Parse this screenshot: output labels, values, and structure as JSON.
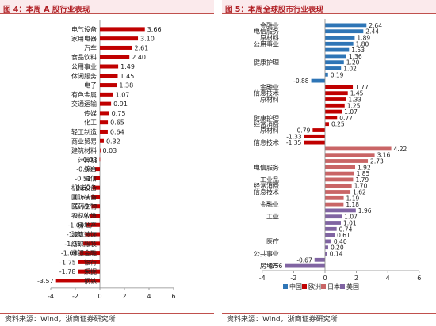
{
  "figures": {
    "left_title": "图 4：本周 A 股行业表现",
    "right_title": "图 5：本周全球股市行业表现"
  },
  "footer": {
    "left_source": "资料来源：Wind，浙商证券研究所",
    "right_source": "资料来源：Wind，浙商证券研究所"
  },
  "colors": {
    "bar_red": "#c00000",
    "china_blue": "#2e75b6",
    "europe_red": "#c00000",
    "japan_rose": "#c96566",
    "usa_purple": "#8064a2",
    "title_red": "#b01f24"
  },
  "chart_data": [
    {
      "type": "bar",
      "orientation": "horizontal",
      "title": "图 4：本周 A 股行业表现",
      "xlim": [
        -4,
        6
      ],
      "xticks": [
        -4,
        -2,
        0,
        2,
        4,
        6
      ],
      "grid": false,
      "categories": [
        "电气设备",
        "家用电器",
        "汽车",
        "食品饮料",
        "公用事业",
        "休闲服务",
        "电子",
        "有色金属",
        "交通运输",
        "传媒",
        "化工",
        "轻工制造",
        "商业贸易",
        "建筑材料",
        "计算机",
        "综合",
        "通信",
        "机械设备",
        "国防装备",
        "医药生物",
        "农林牧渔",
        "房地产",
        "建筑装饰",
        "纺织服装",
        "非银金融",
        "银行",
        "采掘",
        "钢铁"
      ],
      "values": [
        3.66,
        3.1,
        2.61,
        2.4,
        1.49,
        1.45,
        1.38,
        1.07,
        0.91,
        0.75,
        0.65,
        0.64,
        0.32,
        0.03,
        -0.03,
        -0.39,
        -0.51,
        -0.6,
        -0.69,
        -0.69,
        -0.79,
        -1.09,
        -1.2,
        -1.35,
        -1.64,
        -1.75,
        -1.78,
        -3.57
      ],
      "value_labels": [
        "3.66",
        "3.10",
        "2.61",
        "2.40",
        "1.49",
        "1.45",
        "1.38",
        "1.07",
        "0.91",
        "0.75",
        "0.65",
        "0.64",
        "0.32",
        "0.03",
        "-0.03",
        "-0.39",
        "-0.51",
        "-0.60",
        "-0.69",
        "-0.69",
        "-0.79",
        "-1.09",
        "-1.20",
        "-1.35",
        "-1.64",
        "-1.75",
        "-1.78",
        "-3.57"
      ]
    },
    {
      "type": "bar",
      "orientation": "horizontal",
      "title": "图 5：本周全球股市行业表现",
      "xlim": [
        -4,
        6
      ],
      "xticks": [
        -4,
        -2,
        0,
        2,
        4,
        6
      ],
      "grid": false,
      "legend_position": "bottom",
      "legend": [
        "中国",
        "欧洲",
        "日本",
        "美国"
      ],
      "series": [
        {
          "name": "中国",
          "values": [
            2.64,
            2.44,
            1.89,
            1.8,
            1.53,
            1.36,
            1.2,
            1.02,
            0.19,
            -0.88
          ],
          "value_labels": [
            "2.64",
            "2.44",
            "1.89",
            "1.80",
            "1.53",
            "1.36",
            "1.20",
            "1.02",
            "0.19",
            "-0.88"
          ]
        },
        {
          "name": "欧洲",
          "values": [
            1.77,
            1.45,
            1.33,
            1.25,
            1.07,
            0.77,
            0.25,
            -0.79,
            -1.33,
            -1.35
          ],
          "value_labels": [
            "1.77",
            "1.45",
            "1.33",
            "1.25",
            "1.07",
            "0.77",
            "0.25",
            "-0.79",
            "-1.33",
            "-1.35"
          ]
        },
        {
          "name": "日本",
          "values": [
            4.22,
            3.16,
            2.73,
            1.92,
            1.85,
            1.79,
            1.7,
            1.62,
            1.19,
            1.18
          ],
          "value_labels": [
            "4.22",
            "3.16",
            "2.73",
            "1.92",
            "1.85",
            "1.79",
            "1.70",
            "1.62",
            "1.19",
            "1.18"
          ]
        },
        {
          "name": "美国",
          "values": [
            1.96,
            1.07,
            1.01,
            0.74,
            0.61,
            0.4,
            0.2,
            0.14,
            -0.67,
            -2.56
          ],
          "value_labels": [
            "1.96",
            "1.07",
            "1.01",
            "0.74",
            "0.61",
            "0.40",
            "0.20",
            "0.14",
            "-0.67",
            "-2.56"
          ]
        }
      ],
      "category_labels": [
        "金融业",
        "电信服务",
        "原材料",
        "公用事业",
        "健康护理",
        "金融业",
        "信息技术",
        "原材料",
        "健康护理",
        "经常消费",
        "原材料",
        "信息技术",
        "电信服务",
        "工业品",
        "经常消费",
        "信息技术",
        "金融业",
        "工业",
        "医疗",
        "公共事业",
        "房地产"
      ],
      "labeled_bar_index": [
        0,
        1,
        2,
        3,
        6,
        10,
        11,
        12,
        15,
        16,
        17,
        19,
        23,
        25,
        26,
        27,
        29,
        31,
        35,
        37,
        39
      ]
    }
  ]
}
